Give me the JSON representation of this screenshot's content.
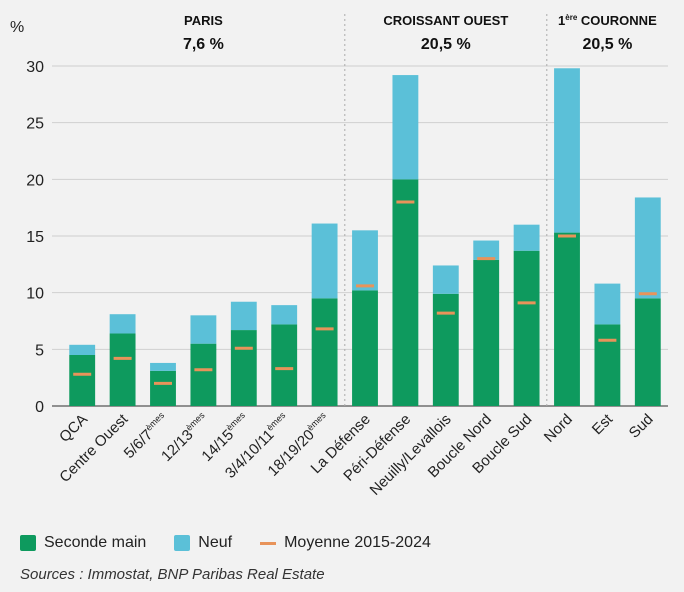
{
  "chart_data": {
    "type": "bar",
    "stacked": true,
    "ylabel": "%",
    "ylim": [
      0,
      30
    ],
    "yticks": [
      0,
      5,
      10,
      15,
      20,
      25,
      30
    ],
    "grid": true,
    "categories": [
      "QCA",
      "Centre Ouest",
      "5/6/7èmes",
      "12/13èmes",
      "14/15èmes",
      "3/4/10/11èmes",
      "18/19/20èmes",
      "La Défense",
      "Péri-Défense",
      "Neuilly/Levallois",
      "Boucle Nord",
      "Boucle Sud",
      "Nord",
      "Est",
      "Sud"
    ],
    "category_labels": [
      {
        "base": "QCA",
        "sup": ""
      },
      {
        "base": "Centre Ouest",
        "sup": ""
      },
      {
        "base": "5/6/7",
        "sup": "èmes"
      },
      {
        "base": "12/13",
        "sup": "èmes"
      },
      {
        "base": "14/15",
        "sup": "èmes"
      },
      {
        "base": "3/4/10/11",
        "sup": "èmes"
      },
      {
        "base": "18/19/20",
        "sup": "èmes"
      },
      {
        "base": "La Défense",
        "sup": ""
      },
      {
        "base": "Péri-Défense",
        "sup": ""
      },
      {
        "base": "Neuilly/Levallois",
        "sup": ""
      },
      {
        "base": "Boucle Nord",
        "sup": ""
      },
      {
        "base": "Boucle Sud",
        "sup": ""
      },
      {
        "base": "Nord",
        "sup": ""
      },
      {
        "base": "Est",
        "sup": ""
      },
      {
        "base": "Sud",
        "sup": ""
      }
    ],
    "series": [
      {
        "name": "Seconde main",
        "color": "#0e9a5e",
        "values": [
          4.5,
          6.4,
          3.1,
          5.5,
          6.7,
          7.2,
          9.5,
          10.2,
          20.0,
          9.9,
          12.9,
          13.7,
          15.3,
          7.2,
          9.5
        ]
      },
      {
        "name": "Neuf",
        "color": "#5bc0d8",
        "values": [
          0.9,
          1.7,
          0.7,
          2.5,
          2.5,
          1.7,
          6.6,
          5.3,
          9.2,
          2.5,
          1.7,
          2.3,
          14.5,
          3.6,
          8.9
        ]
      }
    ],
    "average": {
      "name": "Moyenne 2015-2024",
      "color": "#e8935a",
      "values": [
        2.8,
        4.2,
        2.0,
        3.2,
        5.1,
        3.3,
        6.8,
        10.6,
        18.0,
        8.2,
        13.0,
        9.1,
        15.0,
        5.8,
        9.9
      ]
    },
    "groups": [
      {
        "title": "PARIS",
        "title_sup": "",
        "value": "7,6 %",
        "start": 0,
        "end": 6
      },
      {
        "title": " COURONNE",
        "title_sup": "",
        "value": "20,5 %",
        "start": 7,
        "end": 11,
        "display_title": "CROISSANT OUEST"
      },
      {
        "title": "COURONNE",
        "title_sup": "ère",
        "title_prefix": "1",
        "value": "20,5 %",
        "start": 12,
        "end": 14
      }
    ]
  },
  "legend": {
    "items": [
      {
        "label": "Seconde main",
        "color": "#0e9a5e"
      },
      {
        "label": "Neuf",
        "color": "#5bc0d8"
      },
      {
        "label": "Moyenne 2015-2024",
        "color": "#e8935a"
      }
    ]
  },
  "source": "Sources : Immostat, BNP Paribas Real Estate"
}
